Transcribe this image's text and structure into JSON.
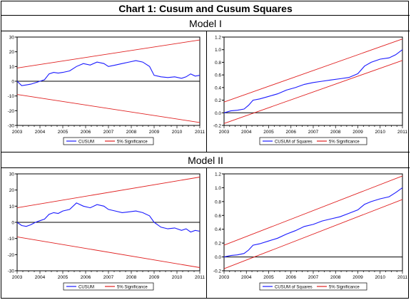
{
  "header": {
    "title": "Chart 1: Cusum and Cusum Squares"
  },
  "models": [
    {
      "label": "Model I"
    },
    {
      "label": "Model II"
    }
  ],
  "chart_data": [
    {
      "model": "Model I",
      "type": "line",
      "xlim": [
        2003,
        2011
      ],
      "ylim": [
        -30,
        30
      ],
      "yticks": [
        -30,
        -20,
        -10,
        0,
        10,
        20,
        30
      ],
      "xticks": [
        2003,
        2004,
        2005,
        2006,
        2007,
        2008,
        2009,
        2010,
        2011
      ],
      "series": [
        {
          "name": "CUSUM",
          "color": "#1a1aff",
          "x": [
            2003.0,
            2003.2,
            2003.4,
            2003.6,
            2003.8,
            2004.0,
            2004.2,
            2004.4,
            2004.6,
            2004.8,
            2005.0,
            2005.3,
            2005.6,
            2005.9,
            2006.2,
            2006.5,
            2006.8,
            2007.0,
            2007.3,
            2007.6,
            2007.9,
            2008.2,
            2008.5,
            2008.8,
            2009.0,
            2009.3,
            2009.6,
            2009.9,
            2010.2,
            2010.4,
            2010.6,
            2010.8,
            2011.0
          ],
          "y": [
            0,
            -3,
            -2.5,
            -2,
            -1,
            0,
            1,
            5,
            6,
            5.5,
            6,
            7,
            10,
            12,
            11,
            13,
            12,
            10,
            11,
            12,
            13,
            14,
            13,
            10,
            4,
            3,
            2.5,
            3,
            2,
            3,
            5,
            3.5,
            4
          ]
        },
        {
          "name": "5% Significance",
          "color": "#e02020",
          "x": [
            2003,
            2011
          ],
          "y": [
            9,
            28
          ]
        },
        {
          "name": "5% Significance",
          "color": "#e02020",
          "x": [
            2003,
            2011
          ],
          "y": [
            -9,
            -28
          ]
        }
      ],
      "legend": [
        "CUSUM",
        "5% Significance"
      ]
    },
    {
      "model": "Model I",
      "type": "line",
      "xlim": [
        2003,
        2011
      ],
      "ylim": [
        -0.2,
        1.2
      ],
      "yticks": [
        -0.2,
        0.0,
        0.2,
        0.4,
        0.6,
        0.8,
        1.0,
        1.2
      ],
      "xticks": [
        2003,
        2004,
        2005,
        2006,
        2007,
        2008,
        2009,
        2010,
        2011
      ],
      "series": [
        {
          "name": "CUSUM of Squares",
          "color": "#1a1aff",
          "x": [
            2003.0,
            2003.3,
            2003.6,
            2003.9,
            2004.1,
            2004.3,
            2004.6,
            2005.0,
            2005.4,
            2005.8,
            2006.2,
            2006.6,
            2007.0,
            2007.4,
            2007.8,
            2008.2,
            2008.6,
            2009.0,
            2009.3,
            2009.6,
            2010.0,
            2010.4,
            2010.7,
            2011.0
          ],
          "y": [
            0.0,
            0.03,
            0.04,
            0.06,
            0.12,
            0.2,
            0.22,
            0.26,
            0.3,
            0.36,
            0.4,
            0.45,
            0.48,
            0.5,
            0.52,
            0.54,
            0.56,
            0.62,
            0.74,
            0.8,
            0.85,
            0.87,
            0.92,
            1.0
          ]
        },
        {
          "name": "5% Significance",
          "color": "#e02020",
          "x": [
            2003,
            2011
          ],
          "y": [
            0.17,
            1.17
          ]
        },
        {
          "name": "5% Significance",
          "color": "#e02020",
          "x": [
            2003,
            2011
          ],
          "y": [
            -0.17,
            0.83
          ]
        }
      ],
      "legend": [
        "CUSUM of Squares",
        "5% Significance"
      ]
    },
    {
      "model": "Model II",
      "type": "line",
      "xlim": [
        2003,
        2011
      ],
      "ylim": [
        -30,
        30
      ],
      "yticks": [
        -30,
        -20,
        -10,
        0,
        10,
        20,
        30
      ],
      "xticks": [
        2003,
        2004,
        2005,
        2006,
        2007,
        2008,
        2009,
        2010,
        2011
      ],
      "series": [
        {
          "name": "CUSUM",
          "color": "#1a1aff",
          "x": [
            2003.0,
            2003.2,
            2003.4,
            2003.6,
            2003.8,
            2004.0,
            2004.2,
            2004.4,
            2004.6,
            2004.8,
            2005.0,
            2005.3,
            2005.6,
            2005.9,
            2006.2,
            2006.5,
            2006.8,
            2007.0,
            2007.3,
            2007.6,
            2007.9,
            2008.2,
            2008.5,
            2008.8,
            2009.0,
            2009.3,
            2009.6,
            2009.9,
            2010.2,
            2010.4,
            2010.6,
            2010.8,
            2011.0
          ],
          "y": [
            0,
            -2,
            -2.5,
            -1.5,
            0,
            1,
            2,
            5,
            6,
            5.5,
            7,
            8,
            12,
            10,
            9,
            11,
            10,
            8,
            7,
            6,
            6.5,
            7,
            6,
            4,
            0,
            -3,
            -4,
            -3.5,
            -5,
            -4,
            -6,
            -5,
            -5.5
          ]
        },
        {
          "name": "5% Significance",
          "color": "#e02020",
          "x": [
            2003,
            2011
          ],
          "y": [
            9,
            28
          ]
        },
        {
          "name": "5% Significance",
          "color": "#e02020",
          "x": [
            2003,
            2011
          ],
          "y": [
            -9,
            -28
          ]
        }
      ],
      "legend": [
        "CUSUM",
        "5% Significance"
      ]
    },
    {
      "model": "Model II",
      "type": "line",
      "xlim": [
        2003,
        2011
      ],
      "ylim": [
        -0.2,
        1.2
      ],
      "yticks": [
        -0.2,
        0.0,
        0.2,
        0.4,
        0.6,
        0.8,
        1.0,
        1.2
      ],
      "xticks": [
        2003,
        2004,
        2005,
        2006,
        2007,
        2008,
        2009,
        2010,
        2011
      ],
      "series": [
        {
          "name": "CUSUM of Squares",
          "color": "#1a1aff",
          "x": [
            2003.0,
            2003.3,
            2003.6,
            2003.9,
            2004.1,
            2004.3,
            2004.6,
            2005.0,
            2005.4,
            2005.8,
            2006.2,
            2006.6,
            2007.0,
            2007.4,
            2007.8,
            2008.2,
            2008.6,
            2009.0,
            2009.3,
            2009.6,
            2010.0,
            2010.4,
            2010.7,
            2011.0
          ],
          "y": [
            0.0,
            0.02,
            0.03,
            0.05,
            0.1,
            0.17,
            0.19,
            0.23,
            0.27,
            0.33,
            0.38,
            0.44,
            0.47,
            0.52,
            0.55,
            0.58,
            0.63,
            0.68,
            0.76,
            0.8,
            0.84,
            0.87,
            0.93,
            1.0
          ]
        },
        {
          "name": "5% Significance",
          "color": "#e02020",
          "x": [
            2003,
            2011
          ],
          "y": [
            0.17,
            1.17
          ]
        },
        {
          "name": "5% Significance",
          "color": "#e02020",
          "x": [
            2003,
            2011
          ],
          "y": [
            -0.17,
            0.83
          ]
        }
      ],
      "legend": [
        "CUSUM of Squares",
        "5% Significance"
      ]
    }
  ]
}
